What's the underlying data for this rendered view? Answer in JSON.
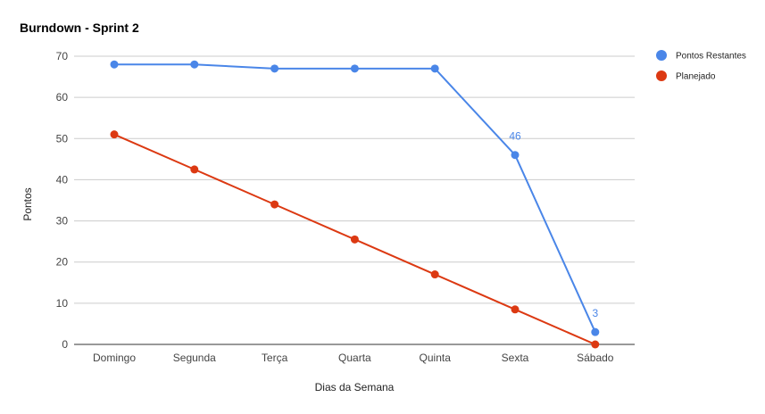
{
  "chart_data": {
    "type": "line",
    "title": "Burndown - Sprint 2",
    "xlabel": "Dias da Semana",
    "ylabel": "Pontos",
    "categories": [
      "Domingo",
      "Segunda",
      "Terça",
      "Quarta",
      "Quinta",
      "Sexta",
      "Sábado"
    ],
    "ylim": [
      0,
      70
    ],
    "yticks": [
      "0",
      "10",
      "20",
      "30",
      "40",
      "50",
      "60",
      "70"
    ],
    "grid": true,
    "legend_position": "right",
    "series": [
      {
        "name": "Pontos Restantes",
        "color": "#4a86e8",
        "values": [
          68,
          68,
          67,
          67,
          67,
          46,
          3
        ],
        "data_labels": [
          "",
          "",
          "",
          "",
          "",
          "46",
          "3"
        ]
      },
      {
        "name": "Planejado",
        "color": "#dc3912",
        "values": [
          51,
          42.5,
          34,
          25.5,
          17,
          8.5,
          0
        ],
        "data_labels": [
          "",
          "",
          "",
          "",
          "",
          "",
          ""
        ]
      }
    ]
  }
}
